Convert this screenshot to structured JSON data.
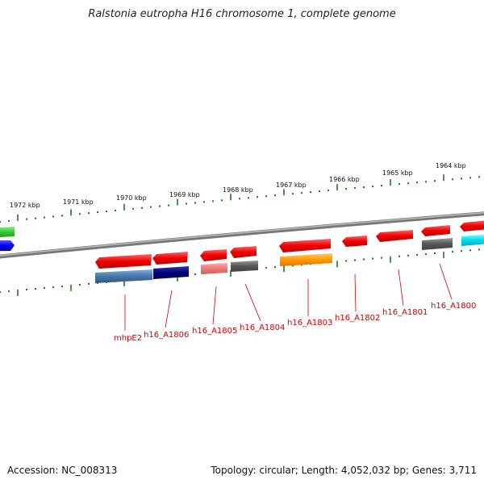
{
  "title": "Ralstonia eutropha H16 chromosome 1, complete genome",
  "footer": {
    "accession": "Accession: NC_008313",
    "topology": "Topology: circular; Length: 4,052,032 bp; Genes: 3,711"
  },
  "kbp_labels": [
    "1972 kbp",
    "1971 kbp",
    "1970 kbp",
    "1969 kbp",
    "1968 kbp",
    "1967 kbp",
    "1966 kbp",
    "1965 kbp",
    "1964 kbp"
  ],
  "gene_labels": [
    "mhpE2",
    "h16_A1806",
    "h16_A1805",
    "h16_A1804",
    "h16_A1803",
    "h16_A1802",
    "h16_A1801",
    "h16_A1800"
  ],
  "colors": {
    "tick": "#1a7a1a",
    "backbone": "#888888",
    "label": "#cc0000",
    "gene_red": "#ee0000",
    "steel_blue": "#4477aa",
    "navy": "#000077",
    "salmon": "#ee7777",
    "gray": "#555555",
    "orange": "#ff9900",
    "cyan": "#00ddee",
    "green": "#33cc33",
    "blue": "#0000ee"
  }
}
